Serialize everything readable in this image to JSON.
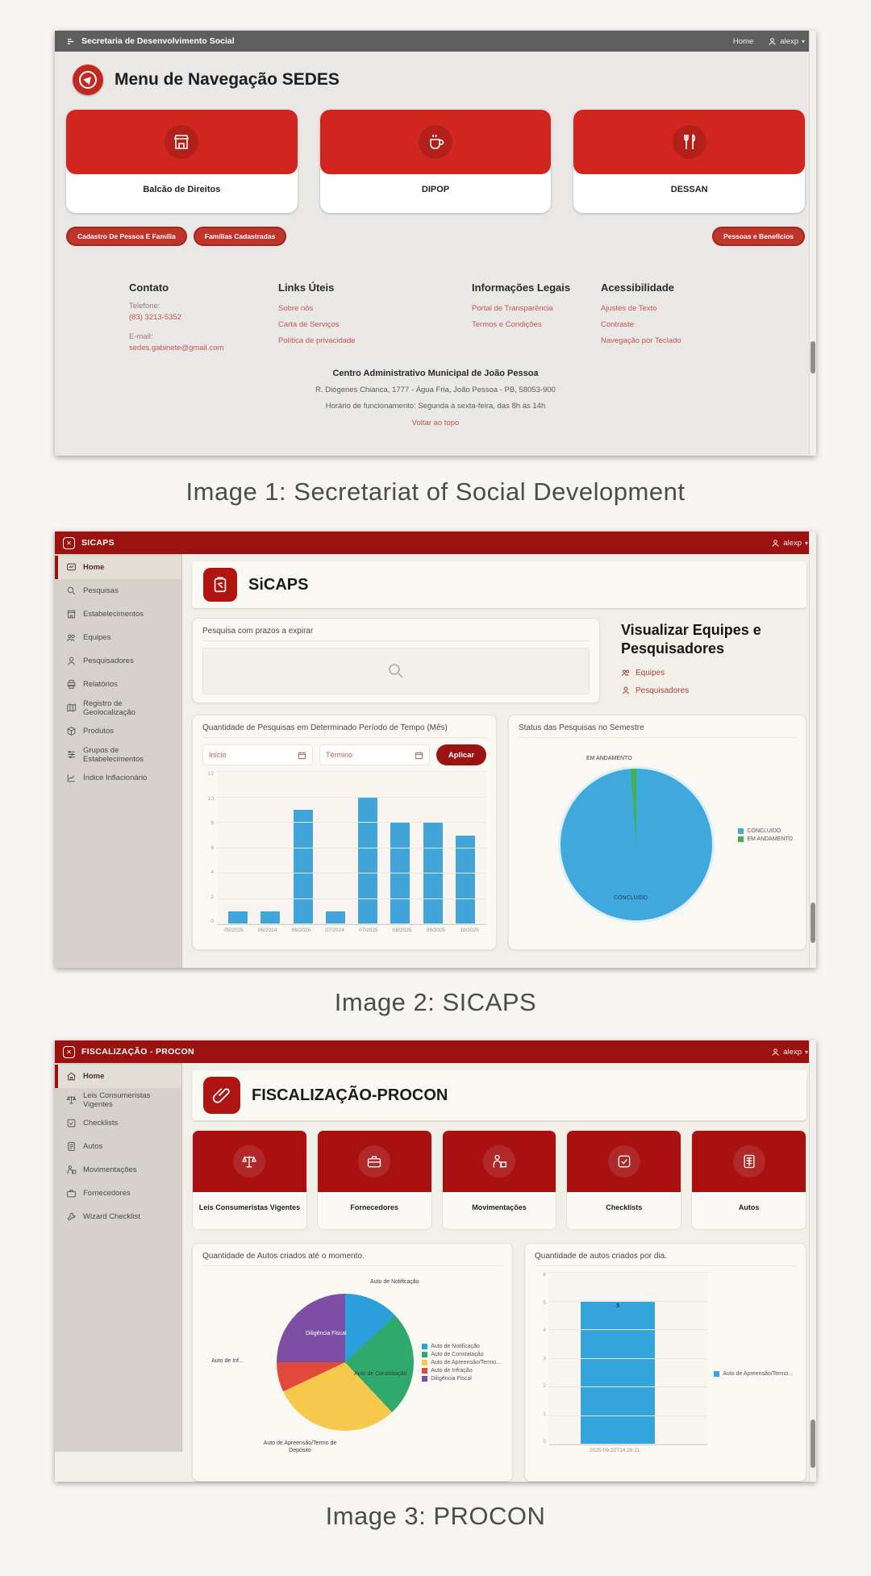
{
  "captions": {
    "image1": "Image 1: Secretariat of Social Development",
    "image2": "Image 2: SICAPS",
    "image3": "Image 3: PROCON"
  },
  "sedes": {
    "header_title": "Secretaria de Desenvolvimento Social",
    "nav_home": "Home",
    "user": "alexp",
    "user_caret": "▾",
    "page_title": "Menu de Navegação SEDES",
    "cards": [
      {
        "label": "Balcão de Direitos",
        "icon": "storefront-icon"
      },
      {
        "label": "DIPOP",
        "icon": "coffee-cup-icon"
      },
      {
        "label": "DESSAN",
        "icon": "restaurant-icon"
      }
    ],
    "pills_left": [
      "Cadastro De Pessoa E Família",
      "Famílias Cadastradas"
    ],
    "pills_right": [
      "Pessoas e Benefícios"
    ],
    "footer": {
      "contato": {
        "title": "Contato",
        "tel_label": "Telefone:",
        "tel": "(83) 3213-5352",
        "email_label": "E-mail:",
        "email": "sedes.gabinete@gmail.com"
      },
      "links_uteis": {
        "title": "Links Úteis",
        "links": [
          "Sobre nós",
          "Carta de Serviços",
          "Política de privacidade"
        ]
      },
      "info_legais": {
        "title": "Informações Legais",
        "links": [
          "Portal de Transparência",
          "Termos e Condições"
        ]
      },
      "acessibilidade": {
        "title": "Acessibilidade",
        "links": [
          "Ajustes de Texto",
          "Contraste",
          "Navegação por Teclado"
        ]
      },
      "address_title": "Centro Administrativo Municipal de João Pessoa",
      "address": "R. Diógenes Chianca, 1777 - Água Fria, João Pessoa - PB, 58053-900",
      "hours": "Horário de funcionamento: Segunda à sexta-feira, das 8h às 14h",
      "back_to_top": "Voltar ao topo"
    }
  },
  "sicaps": {
    "header_title": "SICAPS",
    "user": "alexp",
    "user_caret": "▾",
    "sidebar": [
      "Home",
      "Pesquisas",
      "Estabelecimentos",
      "Equipes",
      "Pesquisadores",
      "Relatórios",
      "Registro de Geolocalização",
      "Produtos",
      "Grupos de Estabelecimentos",
      "Índice Inflacionário"
    ],
    "page_title": "SiCAPS",
    "expiring_label": "Pesquisa com prazos a expirar",
    "view_heading": "Visualizar Equipes e Pesquisadores",
    "view_links": [
      "Equipes",
      "Pesquisadores"
    ]
  },
  "procon": {
    "header_title": "FISCALIZAÇÃO - PROCON",
    "user": "alexp",
    "user_caret": "▾",
    "sidebar": [
      "Home",
      "Leis Consumeristas Vigentes",
      "Checklists",
      "Autos",
      "Movimentações",
      "Fornecedores",
      "Wizard Checklist"
    ],
    "page_title": "FISCALIZAÇÃO-PROCON",
    "cards": [
      {
        "label": "Leis Consumeristas Vigentes",
        "icon": "balance-scale-icon"
      },
      {
        "label": "Fornecedores",
        "icon": "briefcase-icon"
      },
      {
        "label": "Movimentações",
        "icon": "person-box-icon"
      },
      {
        "label": "Checklists",
        "icon": "check-square-icon"
      },
      {
        "label": "Autos",
        "icon": "document-grid-icon"
      }
    ]
  },
  "colors": {
    "brand_red": "#c4271e",
    "dark_red_header": "#9c1210",
    "bar_blue": "#41a5da",
    "pie_blue": "#3fa9de",
    "pie_green": "#43b049"
  },
  "chart_data": [
    {
      "type": "bar",
      "title": "Quantidade de Pesquisas em Determinado Período de Tempo (Mês)",
      "categories": [
        "05/2025",
        "06/2024",
        "06/2025",
        "07/2024",
        "07/2025",
        "08/2025",
        "09/2025",
        "10/2025"
      ],
      "values": [
        1,
        1,
        9,
        1,
        10,
        8,
        8,
        7
      ],
      "ylim": [
        0,
        12
      ],
      "yticks": [
        "12",
        "10",
        "8",
        "6",
        "4",
        "2",
        "0"
      ],
      "bar_color": "#41a5da",
      "grid": true,
      "controls": {
        "inicio": "Início",
        "termino": "Término",
        "apply": "Aplicar"
      }
    },
    {
      "type": "pie",
      "title": "Status das Pesquisas no Semestre",
      "labels": [
        "CONCLUIDO",
        "EM ANDAMENTO"
      ],
      "values": [
        98.8,
        1.2
      ],
      "colors": [
        "#3fa9de",
        "#43b049"
      ],
      "point_labels": [
        "CONCLUIDO",
        "EM ANDAMENTO"
      ],
      "legend_position": "right"
    },
    {
      "type": "pie",
      "title": "Quantidade de Autos criados até o momento.",
      "labels": [
        "Auto de Notificação",
        "Auto de Constatação",
        "Auto de Apreensão/Termo...",
        "Auto de Infração",
        "Diligência Fiscal"
      ],
      "values": [
        13,
        25,
        30,
        7,
        25
      ],
      "colors": [
        "#2d9fdd",
        "#2fa96c",
        "#f6c84c",
        "#e2493d",
        "#7c4fa4"
      ],
      "point_labels": [
        "Auto de Notificação",
        "Auto de Constatação",
        "Auto de Apreensão/Termo de Depósito",
        "Auto de Inf...",
        "Diligência Fiscal"
      ],
      "legend_position": "right"
    },
    {
      "type": "bar",
      "title": "Quantidade de autos criados por dia.",
      "categories": [
        "2025-09-22T14:29:11"
      ],
      "values": [
        5
      ],
      "bar_labels": [
        "5"
      ],
      "ylim": [
        0,
        6
      ],
      "yticks": [
        "6",
        "5",
        "4",
        "3",
        "2",
        "1",
        "0"
      ],
      "bar_color": "#35a3dc",
      "grid": true,
      "legend_labels": [
        "Auto de Apreensão/Termo..."
      ],
      "legend_colors": [
        "#35a3dc"
      ],
      "legend_position": "right"
    }
  ]
}
